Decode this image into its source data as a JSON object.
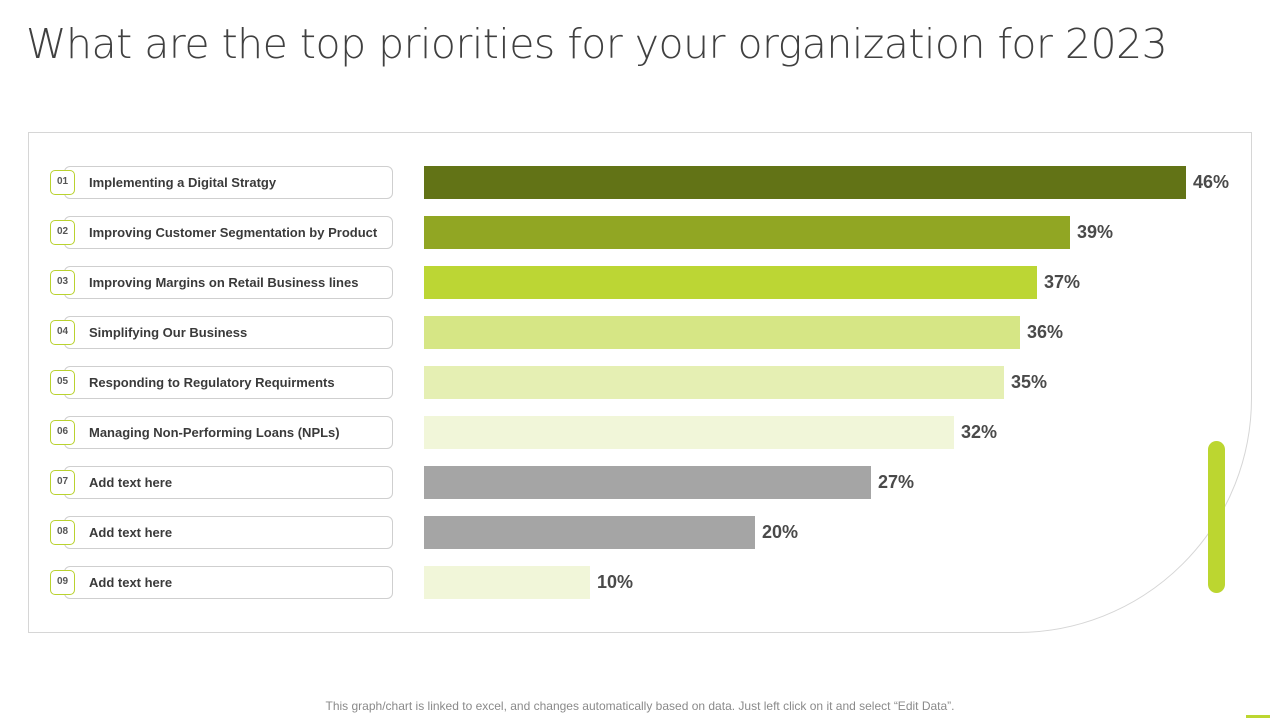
{
  "page": {
    "title": "What are the top priorities for your organization for 2023",
    "footer": "This graph/chart is linked to excel, and changes automatically based on data. Just left click on it and select “Edit Data”."
  },
  "chart_data": {
    "type": "bar",
    "orientation": "horizontal",
    "title": "",
    "xlim": [
      0,
      46
    ],
    "grid": false,
    "categories": [
      {
        "num": "01",
        "label": "Implementing a Digital Stratgy",
        "value": 46,
        "value_label": "46%",
        "color": "#627316"
      },
      {
        "num": "02",
        "label": "Improving Customer Segmentation by Product",
        "value": 39,
        "value_label": "39%",
        "color": "#91a623"
      },
      {
        "num": "03",
        "label": "Improving Margins on Retail Business lines",
        "value": 37,
        "value_label": "37%",
        "color": "#bcd634"
      },
      {
        "num": "04",
        "label": "Simplifying Our Business",
        "value": 36,
        "value_label": "36%",
        "color": "#d6e685"
      },
      {
        "num": "05",
        "label": "Responding to Regulatory Requirments",
        "value": 35,
        "value_label": "35%",
        "color": "#e5efb3"
      },
      {
        "num": "06",
        "label": "Managing Non-Performing Loans (NPLs)",
        "value": 32,
        "value_label": "32%",
        "color": "#f1f6d9"
      },
      {
        "num": "07",
        "label": "Add text here",
        "value": 27,
        "value_label": "27%",
        "color": "#a5a5a5"
      },
      {
        "num": "08",
        "label": "Add text here",
        "value": 20,
        "value_label": "20%",
        "color": "#a5a5a5"
      },
      {
        "num": "09",
        "label": "Add text here",
        "value": 10,
        "value_label": "10%",
        "color": "#f1f6d9"
      }
    ]
  },
  "colors": {
    "accent": "#bcd630",
    "title_text": "#404040"
  }
}
